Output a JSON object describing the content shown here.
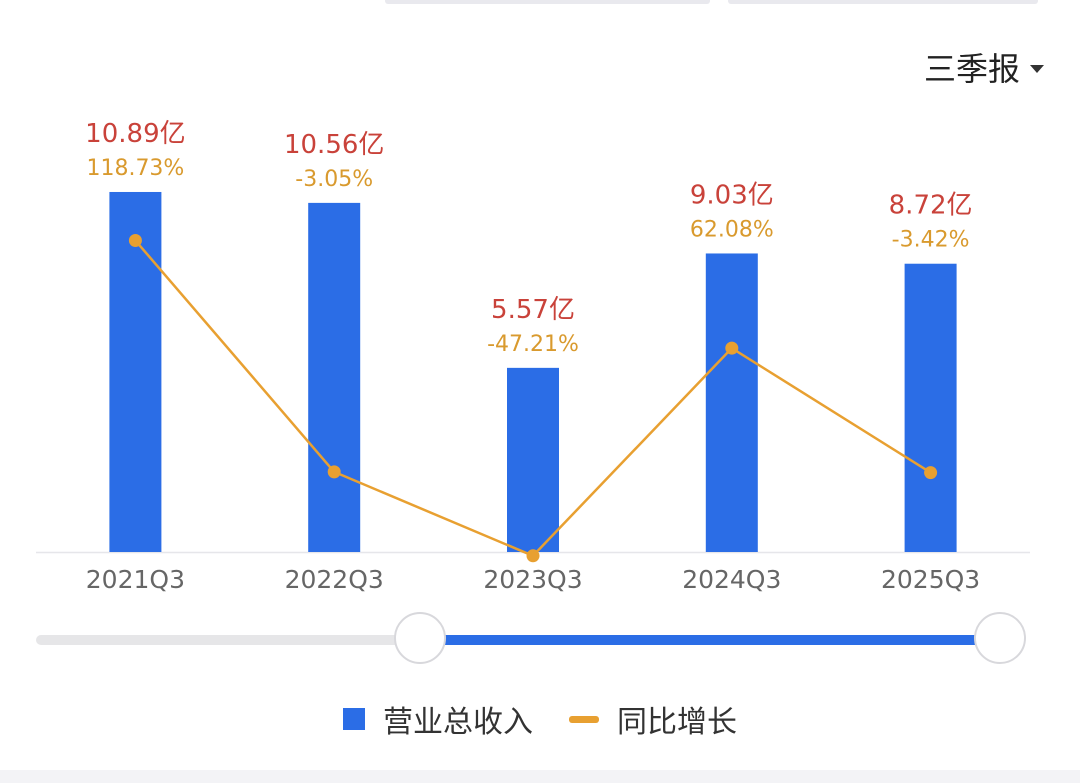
{
  "period_selector": {
    "label": "三季报"
  },
  "legend": {
    "bar_label": "营业总收入",
    "line_label": "同比增长"
  },
  "colors": {
    "bar": "#2b6de6",
    "line": "#e8a031",
    "value_label": "#c9423a",
    "growth_label": "#d99a2e",
    "axis_text": "#666666"
  },
  "chart_data": {
    "type": "bar",
    "categories": [
      "2021Q3",
      "2022Q3",
      "2023Q3",
      "2024Q3",
      "2025Q3"
    ],
    "series": [
      {
        "name": "营业总收入",
        "type": "bar",
        "values": [
          10.89,
          10.56,
          5.57,
          9.03,
          8.72
        ],
        "labels": [
          "10.89亿",
          "10.56亿",
          "5.57亿",
          "9.03亿",
          "8.72亿"
        ]
      },
      {
        "name": "同比增长",
        "type": "line",
        "values": [
          118.73,
          -3.05,
          -47.21,
          62.08,
          -3.42
        ],
        "labels": [
          "118.73%",
          "-3.05%",
          "-47.21%",
          "62.08%",
          "-3.42%"
        ]
      }
    ],
    "bar_ylim": [
      0,
      12
    ],
    "line_ylim": [
      -60,
      140
    ],
    "legend_position": "bottom",
    "grid": false
  },
  "range_slider": {
    "start_fraction": 0.39,
    "end_fraction": 0.98
  }
}
